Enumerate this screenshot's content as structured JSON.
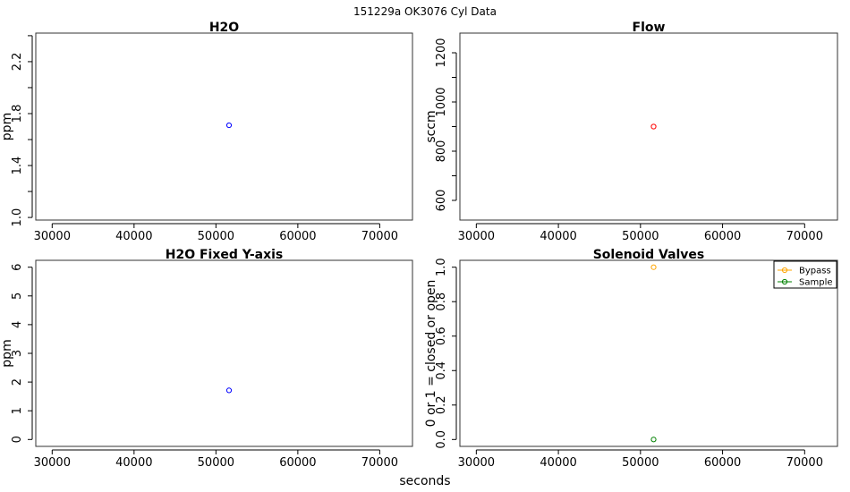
{
  "figure": {
    "title": "151229a    OK3076   Cyl Data",
    "xlabel": "seconds"
  },
  "chart_data": [
    {
      "type": "scatter",
      "title": "H2O",
      "xlabel": "",
      "ylabel": "ppm",
      "xlim": [
        28000,
        74000
      ],
      "ylim": [
        0.98,
        2.42
      ],
      "x_ticks": [
        30000,
        40000,
        50000,
        60000,
        70000
      ],
      "y_ticks": [
        1.0,
        1.2,
        1.4,
        1.6,
        1.8,
        2.0,
        2.2,
        2.4
      ],
      "y_tick_labels": [
        "1.0",
        "",
        "1.4",
        "",
        "1.8",
        "",
        "2.2",
        ""
      ],
      "series": [
        {
          "color": "#0000ff",
          "points": [
            [
              51600,
              1.71
            ]
          ]
        }
      ]
    },
    {
      "type": "scatter",
      "title": "Flow",
      "xlabel": "",
      "ylabel": "sccm",
      "xlim": [
        28000,
        74000
      ],
      "ylim": [
        520,
        1280
      ],
      "x_ticks": [
        30000,
        40000,
        50000,
        60000,
        70000
      ],
      "y_ticks": [
        600,
        700,
        800,
        900,
        1000,
        1100,
        1200
      ],
      "y_tick_labels": [
        "600",
        "",
        "800",
        "",
        "1000",
        "",
        "1200"
      ],
      "series": [
        {
          "color": "#ff0000",
          "points": [
            [
              51600,
              900
            ]
          ]
        }
      ]
    },
    {
      "type": "scatter",
      "title": "H2O Fixed Y-axis",
      "xlabel": "",
      "ylabel": "ppm",
      "xlim": [
        28000,
        74000
      ],
      "ylim": [
        -0.24,
        6.24
      ],
      "x_ticks": [
        30000,
        40000,
        50000,
        60000,
        70000
      ],
      "y_ticks": [
        0,
        1,
        2,
        3,
        4,
        5,
        6
      ],
      "y_tick_labels": [
        "0",
        "1",
        "2",
        "3",
        "4",
        "5",
        "6"
      ],
      "series": [
        {
          "color": "#0000ff",
          "points": [
            [
              51600,
              1.71
            ]
          ]
        }
      ]
    },
    {
      "type": "scatter",
      "title": "Solenoid Valves",
      "xlabel": "",
      "ylabel": "0 or 1 = closed or open",
      "xlim": [
        28000,
        74000
      ],
      "ylim": [
        -0.04,
        1.04
      ],
      "x_ticks": [
        30000,
        40000,
        50000,
        60000,
        70000
      ],
      "y_ticks": [
        0.0,
        0.2,
        0.4,
        0.6,
        0.8,
        1.0
      ],
      "y_tick_labels": [
        "0.0",
        "0.2",
        "0.4",
        "0.6",
        "0.8",
        "1.0"
      ],
      "legend_position": "top-right",
      "series": [
        {
          "name": "Bypass",
          "color": "#ffa500",
          "points": [
            [
              51600,
              1.0
            ]
          ]
        },
        {
          "name": "Sample",
          "color": "#008000",
          "points": [
            [
              51600,
              0.0
            ]
          ]
        }
      ]
    }
  ]
}
